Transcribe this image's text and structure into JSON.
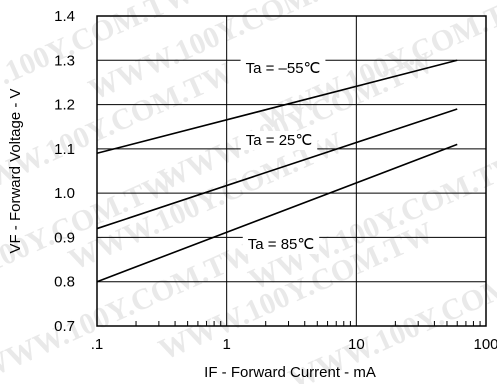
{
  "chart_data": {
    "type": "line",
    "title": "",
    "xlabel": "IF - Forward Current - mA",
    "ylabel": "VF - Forward Voltage - V",
    "x_scale": "log",
    "xlim": [
      0.1,
      100
    ],
    "ylim": [
      0.7,
      1.4
    ],
    "x_ticks": [
      ".1",
      "1",
      "10",
      "100"
    ],
    "y_ticks": [
      "0.7",
      "0.8",
      "0.9",
      "1.0",
      "1.1",
      "1.2",
      "1.3",
      "1.4"
    ],
    "grid": true,
    "series": [
      {
        "name": "Ta = –55℃",
        "x": [
          0.1,
          60
        ],
        "y": [
          1.09,
          1.3
        ]
      },
      {
        "name": "Ta = 25℃",
        "x": [
          0.1,
          60
        ],
        "y": [
          0.92,
          1.19
        ]
      },
      {
        "name": "Ta = 85℃",
        "x": [
          0.1,
          60
        ],
        "y": [
          0.8,
          1.11
        ]
      }
    ]
  },
  "watermark": {
    "text": "WWW.100Y.COM.TW"
  }
}
